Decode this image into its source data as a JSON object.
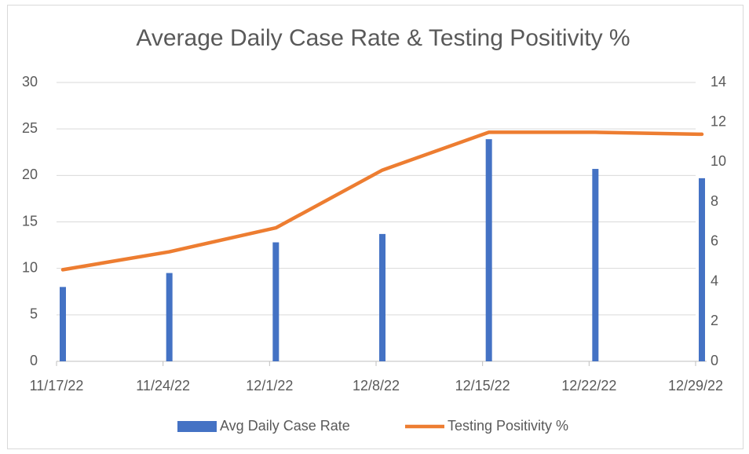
{
  "chart_data": {
    "type": "bar_line",
    "title": "Average Daily Case Rate & Testing Positivity %",
    "categories": [
      "11/17/22",
      "11/24/22",
      "12/1/22",
      "12/8/22",
      "12/15/22",
      "12/22/22",
      "12/29/22"
    ],
    "series": [
      {
        "name": "Avg Daily Case Rate",
        "type": "bar",
        "color": "#4472c4",
        "values": [
          8.0,
          9.5,
          12.8,
          13.7,
          23.9,
          20.7,
          19.7
        ]
      },
      {
        "name": "Testing Positivity %",
        "type": "line",
        "axis": "y2",
        "color": "#ed7d31",
        "values": [
          4.6,
          5.5,
          6.7,
          9.6,
          11.5,
          11.5,
          11.4
        ]
      }
    ],
    "ylim": [
      0,
      30
    ],
    "yticks": [
      0,
      5,
      10,
      15,
      20,
      25,
      30
    ],
    "y2lim": [
      0,
      14
    ],
    "y2ticks": [
      0,
      2,
      4,
      6,
      8,
      10,
      12,
      14
    ],
    "grid": true,
    "legend": "bottom"
  }
}
